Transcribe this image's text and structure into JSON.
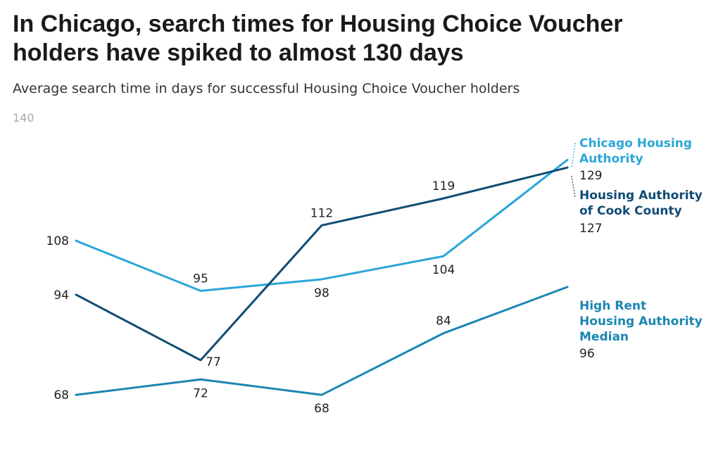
{
  "title": "In Chicago, search times for Housing Choice Voucher holders have spiked to almost 130 days",
  "subtitle": "Average search time in days for successful Housing Choice Voucher holders",
  "chart_data": {
    "type": "line",
    "x": [
      "1",
      "2",
      "3",
      "4",
      "5"
    ],
    "ylim": [
      60,
      140
    ],
    "yticks": [
      140
    ],
    "grid": false,
    "legend": "direct labels at line ends",
    "series": [
      {
        "name": "Chicago Housing Authority",
        "color": "#2ba6d8",
        "values": [
          108,
          95,
          98,
          104,
          129
        ],
        "end_value": "129"
      },
      {
        "name": "Housing Authority of Cook County",
        "color": "#0f4c75",
        "values": [
          94,
          77,
          112,
          119,
          127
        ],
        "end_value": "127"
      },
      {
        "name": "High Rent Housing Authority Median",
        "color": "#1b85b3",
        "values": [
          68,
          72,
          68,
          84,
          96
        ],
        "end_value": "96"
      }
    ]
  }
}
